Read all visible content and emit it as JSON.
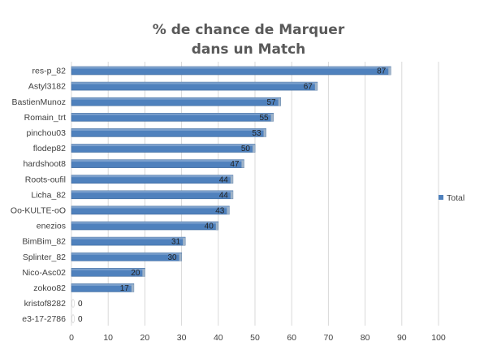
{
  "chart_data": {
    "type": "bar",
    "orientation": "horizontal",
    "title": "% de chance de Marquer dans un Match",
    "title_lines": [
      "% de chance de Marquer",
      "dans un Match"
    ],
    "categories": [
      "res-p_82",
      "Astyl3182",
      "BastienMunoz",
      "Romain_trt",
      "pinchou03",
      "flodep82",
      "hardshoot8",
      "Roots-oufil",
      "Licha_82",
      "Oo-KULTE-oO",
      "enezios",
      "BimBim_82",
      "Splinter_82",
      "Nico-Asc02",
      "zokoo82",
      "kristof8282",
      "e3-17-2786"
    ],
    "series": [
      {
        "name": "Total",
        "values": [
          87,
          67,
          57,
          55,
          53,
          50,
          47,
          44,
          44,
          43,
          40,
          31,
          30,
          20,
          17,
          0,
          0
        ]
      }
    ],
    "xlim": [
      0,
      100
    ],
    "xticks": [
      0,
      10,
      20,
      30,
      40,
      50,
      60,
      70,
      80,
      90,
      100
    ],
    "grid": "vertical",
    "legend": "right",
    "colors": {
      "bar": "#4f81bd",
      "bar_edge": "#3a6699",
      "grid": "#d9d9d9",
      "text": "#404040",
      "title": "#595959"
    }
  }
}
